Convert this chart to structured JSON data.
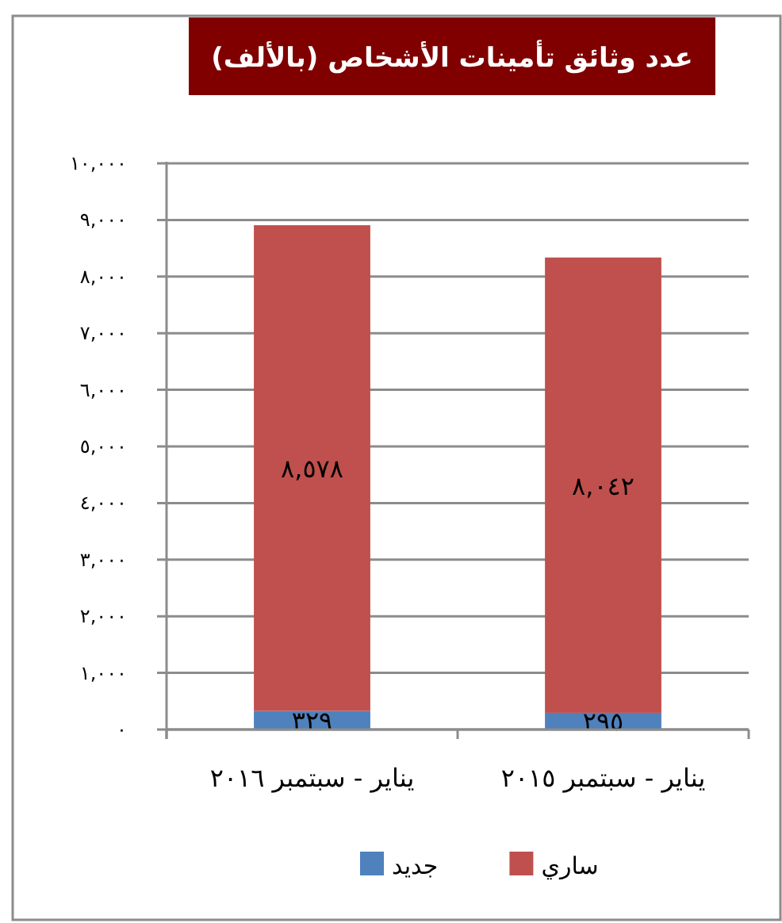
{
  "chart_data": {
    "type": "bar",
    "title": "عدد وثائق تأمينات الأشخاص (بالألف)",
    "categories": [
      "يناير - سبتمبر ٢٠١٦",
      "يناير - سبتمبر ٢٠١٥"
    ],
    "stacked": true,
    "series": [
      {
        "name": "جديد",
        "color": "#4f81bd",
        "values": [
          329,
          295
        ],
        "value_labels": [
          "٣٢٩",
          "٢٩٥"
        ]
      },
      {
        "name": "ساري",
        "color": "#c0504d",
        "values": [
          8578,
          8042
        ],
        "value_labels": [
          "٨,٥٧٨",
          "٨,٠٤٢"
        ]
      }
    ],
    "ylim": [
      0,
      10000
    ],
    "yticks": [
      {
        "value": 0,
        "label": "٠"
      },
      {
        "value": 1000,
        "label": "١,٠٠٠"
      },
      {
        "value": 2000,
        "label": "٢,٠٠٠"
      },
      {
        "value": 3000,
        "label": "٣,٠٠٠"
      },
      {
        "value": 4000,
        "label": "٤,٠٠٠"
      },
      {
        "value": 5000,
        "label": "٥,٠٠٠"
      },
      {
        "value": 6000,
        "label": "٦,٠٠٠"
      },
      {
        "value": 7000,
        "label": "٧,٠٠٠"
      },
      {
        "value": 8000,
        "label": "٨,٠٠٠"
      },
      {
        "value": 9000,
        "label": "٩,٠٠٠"
      },
      {
        "value": 10000,
        "label": "١٠,٠٠٠"
      }
    ],
    "grid": "y",
    "legend": "bottom"
  }
}
